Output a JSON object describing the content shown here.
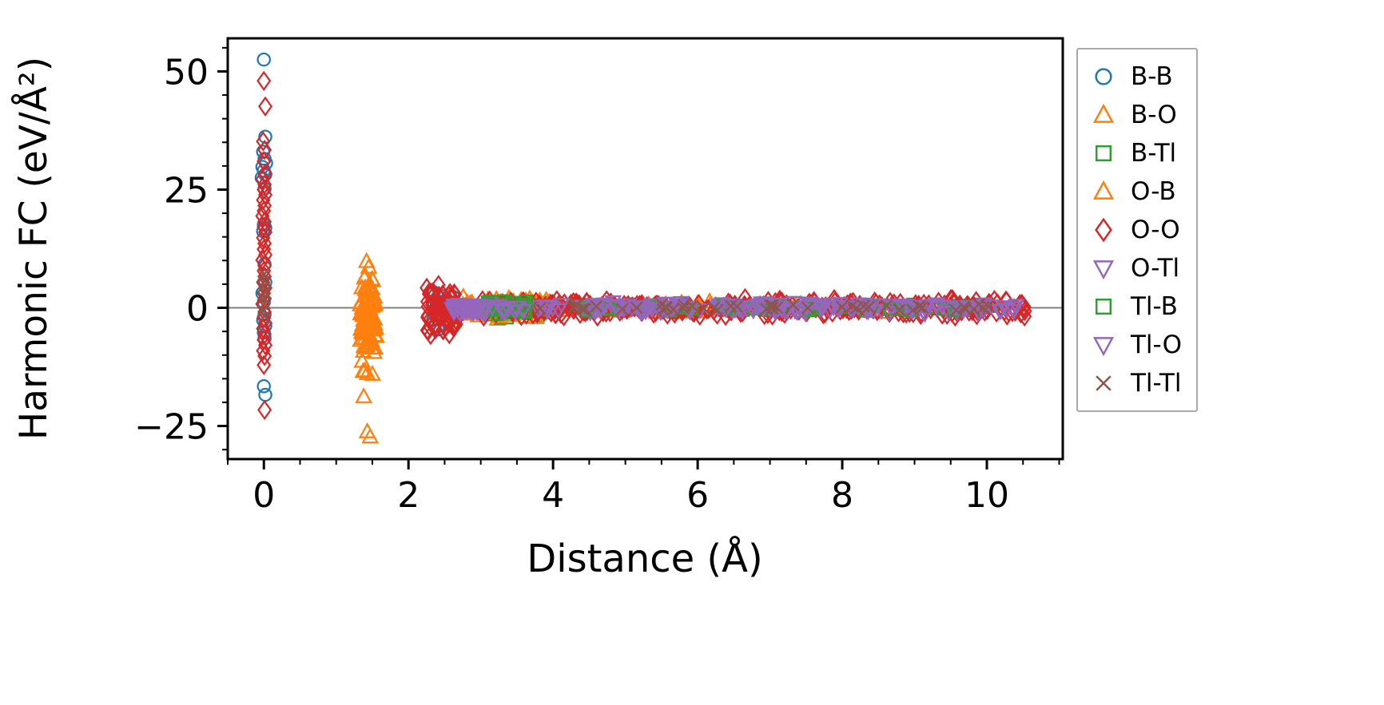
{
  "figure": {
    "background": "#ffffff",
    "spine_color": "#000000",
    "zero_line_color": "#808080",
    "legend_border_color": "#aaaaaa"
  },
  "chart_data": {
    "type": "scatter",
    "title": "",
    "xlabel": "Distance (Å)",
    "ylabel": "Harmonic FC (eV/Å²)",
    "xlim": [
      -0.5,
      11.05
    ],
    "ylim": [
      -32,
      57
    ],
    "xticks": [
      0,
      2,
      4,
      6,
      8,
      10
    ],
    "yticks": [
      -25,
      0,
      25,
      50
    ],
    "xtick_labels": [
      "0",
      "2",
      "4",
      "6",
      "8",
      "10"
    ],
    "ytick_labels": [
      "−25",
      "0",
      "25",
      "50"
    ],
    "x_minor_step": 0.5,
    "y_minor_step": 5,
    "grid": false,
    "zero_line": {
      "y": 0,
      "color": "#808080"
    },
    "legend_position": "outside-right",
    "series": [
      {
        "name": "B-B",
        "marker": "circle",
        "color": "#1f77b4",
        "points": [
          [
            0,
            52.5
          ],
          [
            0.02,
            36.2
          ],
          [
            -0.01,
            33.0
          ],
          [
            0.01,
            31.5
          ],
          [
            0.03,
            30.6
          ],
          [
            -0.02,
            29.8
          ],
          [
            0,
            29.0
          ],
          [
            0.02,
            28.2
          ],
          [
            -0.03,
            27.5
          ],
          [
            0.01,
            25.2
          ],
          [
            0,
            17.6
          ],
          [
            0.02,
            16.9
          ],
          [
            -0.01,
            16.2
          ],
          [
            0.01,
            9.2
          ],
          [
            0.02,
            5.4
          ],
          [
            -0.02,
            3.1
          ],
          [
            0,
            1.2
          ],
          [
            0.01,
            -1.4
          ],
          [
            -0.01,
            -2.6
          ],
          [
            0.02,
            -3.8
          ],
          [
            0,
            -5.2
          ],
          [
            0.01,
            -6.4
          ],
          [
            0,
            -16.6
          ],
          [
            0.02,
            -18.4
          ]
        ],
        "clusters": [
          {
            "x": [
              2.33,
              2.62
            ],
            "y": [
              -6.0,
              5.2
            ],
            "n": 26
          },
          {
            "x": [
              2.9,
              3.9
            ],
            "y": [
              -1.2,
              1.2
            ],
            "n": 12
          }
        ]
      },
      {
        "name": "B-O",
        "marker": "triangle-up",
        "color": "#ff7f0e",
        "points": [
          [
            1.42,
            9.8
          ],
          [
            1.45,
            8.6
          ],
          [
            1.38,
            -18.8
          ],
          [
            1.43,
            -26.2
          ],
          [
            1.47,
            -27.3
          ]
        ],
        "clusters": [
          {
            "x": [
              1.33,
              1.56
            ],
            "y": [
              -15.5,
              8.0
            ],
            "n": 55
          },
          {
            "x": [
              2.45,
              3.95
            ],
            "y": [
              -3.0,
              2.6
            ],
            "n": 55
          },
          {
            "x": [
              3.95,
              6.2
            ],
            "y": [
              -1.6,
              1.4
            ],
            "n": 30
          },
          {
            "x": [
              6.2,
              9.3
            ],
            "y": [
              -1.0,
              1.0
            ],
            "n": 18
          }
        ]
      },
      {
        "name": "B-Tl",
        "marker": "square",
        "color": "#2ca02c",
        "points": [],
        "clusters": [
          {
            "x": [
              3.05,
              3.6
            ],
            "y": [
              -2.6,
              2.2
            ],
            "n": 40
          },
          {
            "x": [
              3.6,
              4.05
            ],
            "y": [
              -2.0,
              1.6
            ],
            "n": 16
          },
          {
            "x": [
              4.3,
              10.2
            ],
            "y": [
              -0.9,
              0.9
            ],
            "n": 40
          }
        ]
      },
      {
        "name": "O-B",
        "marker": "triangle-up",
        "color": "#ff7f0e",
        "points": [],
        "clusters": [
          {
            "x": [
              1.34,
              1.56
            ],
            "y": [
              -13.5,
              7.5
            ],
            "n": 45
          },
          {
            "x": [
              2.5,
              3.95
            ],
            "y": [
              -2.8,
              2.4
            ],
            "n": 45
          },
          {
            "x": [
              4.0,
              8.6
            ],
            "y": [
              -1.1,
              1.1
            ],
            "n": 25
          }
        ]
      },
      {
        "name": "O-O",
        "marker": "diamond",
        "color": "#d62728",
        "points": [
          [
            0,
            48.0
          ],
          [
            0.02,
            42.6
          ],
          [
            -0.01,
            35.2
          ],
          [
            0.01,
            33.4
          ],
          [
            0,
            31.0
          ],
          [
            0.02,
            28.4
          ],
          [
            -0.02,
            27.2
          ],
          [
            0.01,
            26.1
          ],
          [
            0,
            25.0
          ],
          [
            0.02,
            23.9
          ],
          [
            -0.01,
            22.8
          ],
          [
            0.01,
            21.6
          ],
          [
            0,
            20.5
          ],
          [
            -0.02,
            19.4
          ],
          [
            0.01,
            18.2
          ],
          [
            0,
            17.1
          ],
          [
            0.02,
            16.0
          ],
          [
            -0.01,
            14.8
          ],
          [
            0.01,
            13.6
          ],
          [
            0,
            12.4
          ],
          [
            0.02,
            11.2
          ],
          [
            -0.02,
            10.1
          ],
          [
            0.01,
            8.9
          ],
          [
            0,
            7.8
          ],
          [
            0.01,
            6.6
          ],
          [
            -0.01,
            5.4
          ],
          [
            0.02,
            4.2
          ],
          [
            0,
            3.1
          ],
          [
            0.01,
            1.9
          ],
          [
            -0.02,
            0.8
          ],
          [
            0.01,
            -0.9
          ],
          [
            0,
            -2.1
          ],
          [
            0.02,
            -3.2
          ],
          [
            -0.01,
            -4.4
          ],
          [
            0.01,
            -5.6
          ],
          [
            0,
            -6.8
          ],
          [
            0.02,
            -7.9
          ],
          [
            -0.01,
            -9.1
          ],
          [
            0.01,
            -10.2
          ],
          [
            0,
            -12.1
          ],
          [
            0.01,
            -21.6
          ],
          [
            10.52,
            0.1
          ]
        ],
        "clusters": [
          {
            "x": [
              2.24,
              2.66
            ],
            "y": [
              -6.2,
              5.6
            ],
            "n": 75
          },
          {
            "x": [
              3.0,
              10.55
            ],
            "y": [
              -2.1,
              2.1
            ],
            "n": 330
          }
        ]
      },
      {
        "name": "O-Tl",
        "marker": "triangle-down",
        "color": "#9467bd",
        "points": [],
        "clusters": [
          {
            "x": [
              2.6,
              3.06
            ],
            "y": [
              -1.6,
              1.3
            ],
            "n": 35
          },
          {
            "x": [
              3.06,
              10.4
            ],
            "y": [
              -1.3,
              1.3
            ],
            "n": 120
          }
        ]
      },
      {
        "name": "Tl-B",
        "marker": "square",
        "color": "#2ca02c",
        "points": [],
        "clusters": [
          {
            "x": [
              3.05,
              3.65
            ],
            "y": [
              -2.2,
              2.0
            ],
            "n": 25
          },
          {
            "x": [
              3.65,
              10.15
            ],
            "y": [
              -0.8,
              0.8
            ],
            "n": 30
          }
        ]
      },
      {
        "name": "Tl-O",
        "marker": "triangle-down",
        "color": "#9467bd",
        "points": [
          [
            10.28,
            -0.3
          ]
        ],
        "clusters": [
          {
            "x": [
              2.6,
              3.06
            ],
            "y": [
              -1.5,
              1.1
            ],
            "n": 25
          },
          {
            "x": [
              3.06,
              10.45
            ],
            "y": [
              -1.1,
              1.1
            ],
            "n": 110
          }
        ]
      },
      {
        "name": "Tl-Tl",
        "marker": "x",
        "color": "#8c564b",
        "points": [
          [
            0,
            7.1
          ],
          [
            0.01,
            5.6
          ],
          [
            -0.01,
            4.4
          ],
          [
            0.02,
            3.2
          ],
          [
            0,
            2.1
          ],
          [
            0.01,
            0.9
          ],
          [
            -0.01,
            -0.6
          ],
          [
            0.01,
            -1.8
          ]
        ],
        "clusters": [
          {
            "x": [
              3.7,
              10.3
            ],
            "y": [
              -0.85,
              0.85
            ],
            "n": 48
          }
        ]
      }
    ]
  }
}
